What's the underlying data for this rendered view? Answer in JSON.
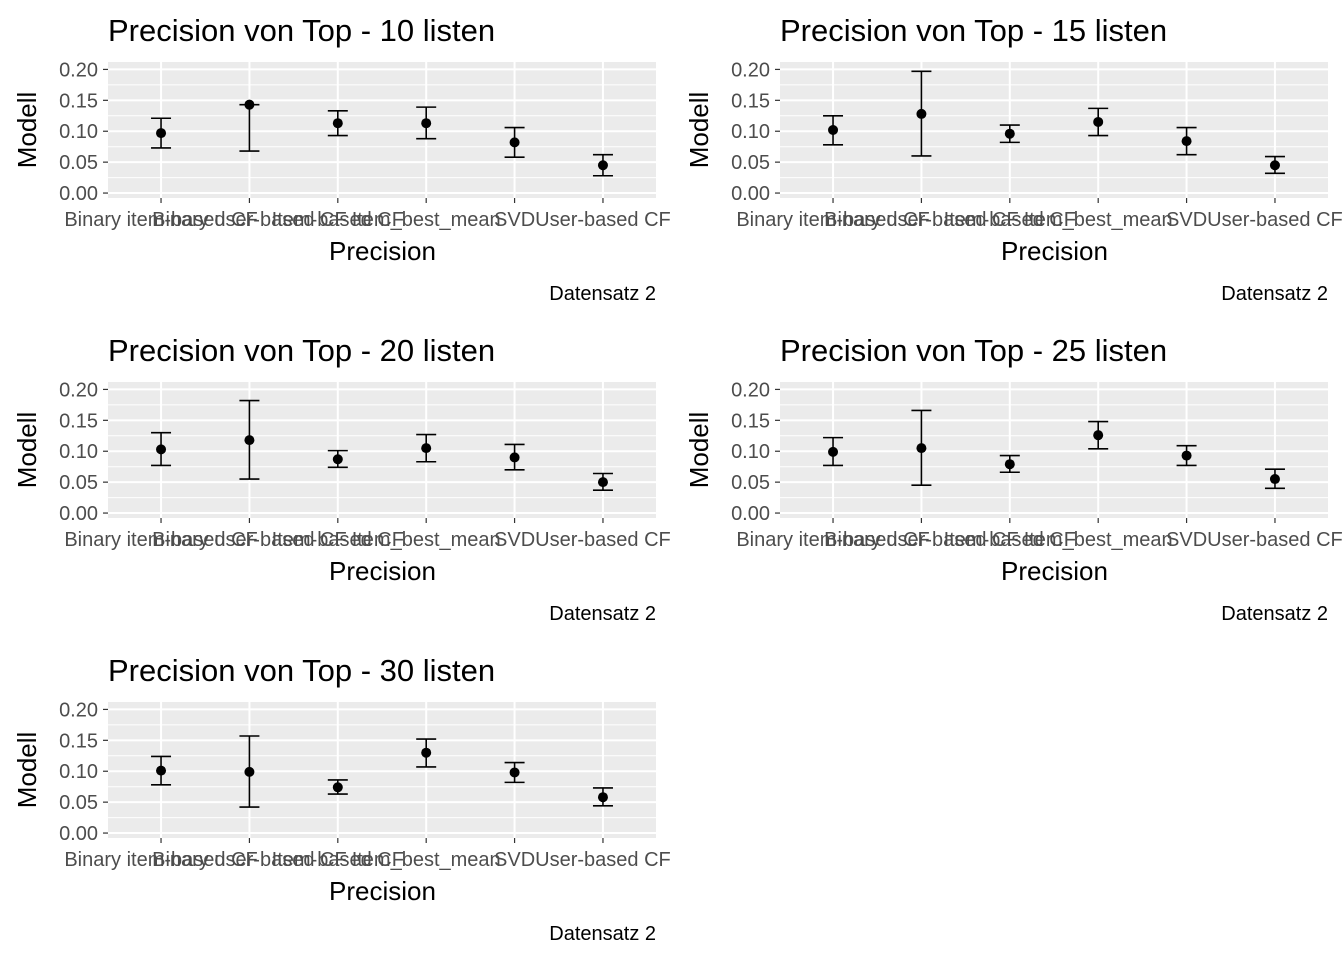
{
  "chart_data": [
    {
      "type": "errorbar",
      "title": "Precision von Top - 10  listen",
      "xlabel": "Precision",
      "ylabel": "Modell",
      "caption": "Datensatz 2",
      "categories": [
        "Binary item-based CF",
        "Binary user-based CF",
        "Item-based CF",
        "Item_best_mean",
        "SVD",
        "User-based CF"
      ],
      "ylim": [
        -0.008,
        0.212
      ],
      "yticks": [
        "0.00",
        "0.05",
        "0.10",
        "0.15",
        "0.20"
      ],
      "values": [
        0.097,
        0.143,
        0.113,
        0.113,
        0.082,
        0.045
      ],
      "lower": [
        0.073,
        0.068,
        0.093,
        0.088,
        0.058,
        0.028
      ],
      "upper": [
        0.121,
        0.143,
        0.133,
        0.139,
        0.106,
        0.062
      ]
    },
    {
      "type": "errorbar",
      "title": "Precision von Top - 15  listen",
      "xlabel": "Precision",
      "ylabel": "Modell",
      "caption": "Datensatz 2",
      "categories": [
        "Binary item-based CF",
        "Binary user-based CF",
        "Item-based CF",
        "Item_best_mean",
        "SVD",
        "User-based CF"
      ],
      "ylim": [
        -0.008,
        0.212
      ],
      "yticks": [
        "0.00",
        "0.05",
        "0.10",
        "0.15",
        "0.20"
      ],
      "values": [
        0.102,
        0.128,
        0.096,
        0.115,
        0.084,
        0.045
      ],
      "lower": [
        0.078,
        0.06,
        0.082,
        0.093,
        0.062,
        0.032
      ],
      "upper": [
        0.125,
        0.197,
        0.11,
        0.137,
        0.106,
        0.059
      ]
    },
    {
      "type": "errorbar",
      "title": "Precision von Top - 20  listen",
      "xlabel": "Precision",
      "ylabel": "Modell",
      "caption": "Datensatz 2",
      "categories": [
        "Binary item-based CF",
        "Binary user-based CF",
        "Item-based CF",
        "Item_best_mean",
        "SVD",
        "User-based CF"
      ],
      "ylim": [
        -0.008,
        0.212
      ],
      "yticks": [
        "0.00",
        "0.05",
        "0.10",
        "0.15",
        "0.20"
      ],
      "values": [
        0.103,
        0.118,
        0.087,
        0.105,
        0.09,
        0.05
      ],
      "lower": [
        0.077,
        0.055,
        0.074,
        0.083,
        0.07,
        0.037
      ],
      "upper": [
        0.13,
        0.182,
        0.101,
        0.127,
        0.111,
        0.064
      ]
    },
    {
      "type": "errorbar",
      "title": "Precision von Top - 25  listen",
      "xlabel": "Precision",
      "ylabel": "Modell",
      "caption": "Datensatz 2",
      "categories": [
        "Binary item-based CF",
        "Binary user-based CF",
        "Item-based CF",
        "Item_best_mean",
        "SVD",
        "User-based CF"
      ],
      "ylim": [
        -0.008,
        0.212
      ],
      "yticks": [
        "0.00",
        "0.05",
        "0.10",
        "0.15",
        "0.20"
      ],
      "values": [
        0.099,
        0.105,
        0.079,
        0.126,
        0.093,
        0.055
      ],
      "lower": [
        0.077,
        0.045,
        0.066,
        0.104,
        0.077,
        0.04
      ],
      "upper": [
        0.122,
        0.166,
        0.093,
        0.148,
        0.109,
        0.071
      ]
    },
    {
      "type": "errorbar",
      "title": "Precision von Top - 30  listen",
      "xlabel": "Precision",
      "ylabel": "Modell",
      "caption": "Datensatz 2",
      "categories": [
        "Binary item-based CF",
        "Binary user-based CF",
        "Item-based CF",
        "Item_best_mean",
        "SVD",
        "User-based CF"
      ],
      "ylim": [
        -0.008,
        0.212
      ],
      "yticks": [
        "0.00",
        "0.05",
        "0.10",
        "0.15",
        "0.20"
      ],
      "values": [
        0.101,
        0.099,
        0.074,
        0.13,
        0.098,
        0.058
      ],
      "lower": [
        0.078,
        0.042,
        0.063,
        0.107,
        0.082,
        0.044
      ],
      "upper": [
        0.124,
        0.157,
        0.086,
        0.152,
        0.114,
        0.073
      ]
    }
  ]
}
